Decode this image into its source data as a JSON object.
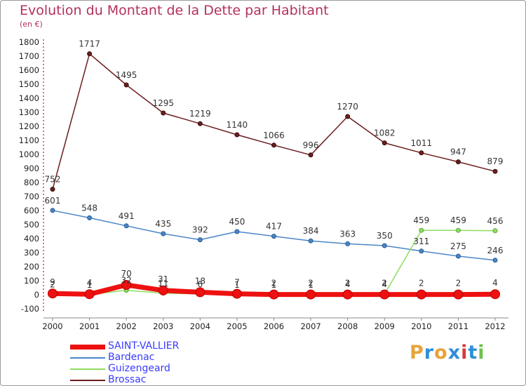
{
  "header": {
    "title": "Evolution du Montant de la Dette par Habitant",
    "unit": "(en €)"
  },
  "logo": {
    "text": "Proxiti",
    "colors": [
      "#e8a33a",
      "#2f8fd8",
      "#e8a33a",
      "#2f8fd8",
      "#d93a3a",
      "#2f8fd8",
      "#6cc24a"
    ]
  },
  "chart_data": {
    "type": "line",
    "title": "Evolution du Montant de la Dette par Habitant",
    "subtitle": "(en €)",
    "xlabel": "",
    "ylabel": "",
    "x": [
      2000,
      2001,
      2002,
      2003,
      2004,
      2005,
      2006,
      2007,
      2008,
      2009,
      2010,
      2011,
      2012
    ],
    "ylim": [
      -100,
      1800
    ],
    "yticks": [
      -100,
      0,
      100,
      200,
      300,
      400,
      500,
      600,
      700,
      800,
      900,
      1000,
      1100,
      1200,
      1300,
      1400,
      1500,
      1600,
      1700,
      1800
    ],
    "grid": false,
    "legend_position": "bottom-left",
    "series": [
      {
        "name": "SAINT-VALLIER",
        "color": "#ee1111",
        "values": [
          9,
          4,
          70,
          31,
          18,
          7,
          2,
          2,
          2,
          2,
          2,
          2,
          4
        ]
      },
      {
        "name": "Bardenac",
        "color": "#4a86c8",
        "values": [
          601,
          548,
          491,
          435,
          392,
          450,
          417,
          384,
          363,
          350,
          311,
          275,
          246
        ]
      },
      {
        "name": "Guizengeard",
        "color": "#8fdc5f",
        "values": [
          2,
          1,
          32,
          11,
          6,
          1,
          1,
          1,
          4,
          4,
          459,
          459,
          456
        ]
      },
      {
        "name": "Brossac",
        "color": "#6b1e1e",
        "values": [
          752,
          1717,
          1495,
          1295,
          1219,
          1140,
          1066,
          996,
          1270,
          1082,
          1011,
          947,
          879
        ]
      }
    ]
  }
}
